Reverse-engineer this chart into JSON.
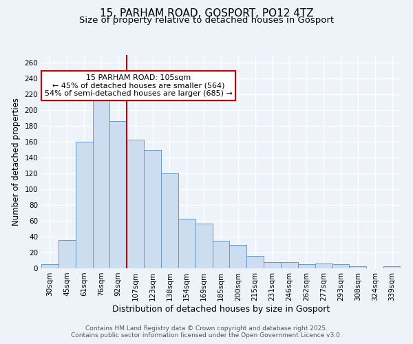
{
  "title": "15, PARHAM ROAD, GOSPORT, PO12 4TZ",
  "subtitle": "Size of property relative to detached houses in Gosport",
  "xlabel": "Distribution of detached houses by size in Gosport",
  "ylabel": "Number of detached properties",
  "bar_labels": [
    "30sqm",
    "45sqm",
    "61sqm",
    "76sqm",
    "92sqm",
    "107sqm",
    "123sqm",
    "138sqm",
    "154sqm",
    "169sqm",
    "185sqm",
    "200sqm",
    "215sqm",
    "231sqm",
    "246sqm",
    "262sqm",
    "277sqm",
    "293sqm",
    "308sqm",
    "324sqm",
    "339sqm"
  ],
  "bar_values": [
    5,
    36,
    160,
    218,
    186,
    163,
    150,
    120,
    63,
    57,
    35,
    30,
    16,
    8,
    8,
    5,
    6,
    5,
    3,
    0,
    3
  ],
  "bar_color": "#ccddf0",
  "bar_edge_color": "#6699cc",
  "vline_x_index": 5,
  "vline_color": "#cc0000",
  "ylim": [
    0,
    270
  ],
  "yticks": [
    0,
    20,
    40,
    60,
    80,
    100,
    120,
    140,
    160,
    180,
    200,
    220,
    240,
    260
  ],
  "annotation_title": "15 PARHAM ROAD: 105sqm",
  "annotation_line1": "← 45% of detached houses are smaller (564)",
  "annotation_line2": "54% of semi-detached houses are larger (685) →",
  "annotation_box_color": "#ffffff",
  "annotation_box_edge": "#cc0000",
  "bg_color": "#eef2f9",
  "grid_color": "#ffffff",
  "footer1": "Contains HM Land Registry data © Crown copyright and database right 2025.",
  "footer2": "Contains public sector information licensed under the Open Government Licence v3.0.",
  "title_fontsize": 11,
  "subtitle_fontsize": 9.5,
  "xlabel_fontsize": 9,
  "ylabel_fontsize": 8.5,
  "tick_fontsize": 7.5,
  "annotation_fontsize": 8,
  "footer_fontsize": 6.5
}
